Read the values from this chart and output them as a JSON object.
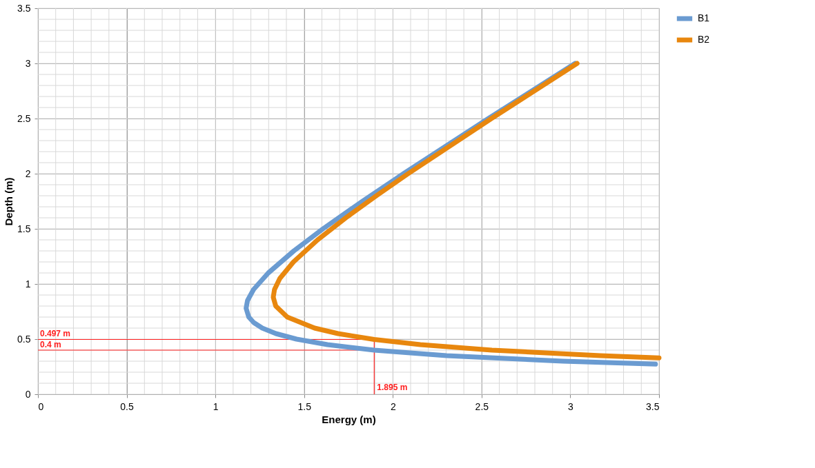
{
  "chart_data": {
    "type": "line",
    "xlabel": "Energy (m)",
    "ylabel": "Depth (m)",
    "xlim": [
      0,
      3.5
    ],
    "ylim": [
      0,
      3.5
    ],
    "xticks": [
      0,
      0.5,
      1,
      1.5,
      2,
      2.5,
      3,
      3.5
    ],
    "yticks": [
      0,
      0.5,
      1,
      1.5,
      2,
      2.5,
      3,
      3.5
    ],
    "grid": true,
    "legend": "right",
    "marker": "none",
    "line_style": "solid",
    "series": [
      {
        "name": "B1",
        "color": "#6a9bd1",
        "x": [
          3.48,
          2.958,
          2.303,
          1.895,
          1.631,
          1.457,
          1.341,
          1.264,
          1.216,
          1.188,
          1.173,
          1.181,
          1.215,
          1.298,
          1.442,
          1.606,
          1.828,
          2.06,
          2.538,
          3.027
        ],
        "values": [
          0.273,
          0.3,
          0.35,
          0.4,
          0.45,
          0.5,
          0.55,
          0.6,
          0.65,
          0.7,
          0.78,
          0.85,
          0.95,
          1.1,
          1.3,
          1.5,
          1.75,
          2.0,
          2.5,
          3.0
        ]
      },
      {
        "name": "B2",
        "color": "#e8870e",
        "x": [
          3.5,
          3.169,
          2.558,
          2.155,
          1.895,
          1.691,
          1.559,
          1.405,
          1.34,
          1.326,
          1.333,
          1.363,
          1.44,
          1.576,
          1.735,
          1.907,
          2.086,
          2.555,
          3.038
        ],
        "values": [
          0.33,
          0.35,
          0.4,
          0.45,
          0.497,
          0.55,
          0.6,
          0.7,
          0.8,
          0.88,
          0.95,
          1.05,
          1.2,
          1.4,
          1.6,
          1.8,
          2.0,
          2.5,
          3.0
        ]
      }
    ],
    "ref_lines": [
      {
        "axis": "y",
        "value": 0.497,
        "label": "0.497 m",
        "color": "#ff2020"
      },
      {
        "axis": "y",
        "value": 0.4,
        "label": "0.4 m",
        "color": "#ff2020"
      },
      {
        "axis": "x",
        "value": 1.895,
        "label": "1.895 m",
        "color": "#ff2020"
      }
    ]
  }
}
